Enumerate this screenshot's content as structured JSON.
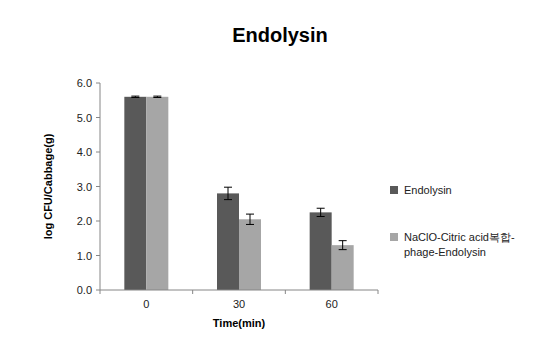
{
  "chart_data": {
    "type": "bar",
    "title": "Endolysin",
    "x_label": "Time(min)",
    "y_label": "log CFU/Cabbage(g)",
    "categories": [
      "0",
      "30",
      "60"
    ],
    "series": [
      {
        "name": "Endolysin",
        "color": "#595959",
        "values": [
          5.6,
          2.8,
          2.25
        ],
        "errors": [
          0.02,
          0.18,
          0.12
        ]
      },
      {
        "name": "NaClO-Citric acid복합-phage-Endolysin",
        "color": "#a6a6a6",
        "values": [
          5.6,
          2.05,
          1.3
        ],
        "errors": [
          0.02,
          0.15,
          0.13
        ]
      }
    ],
    "ylim": [
      0,
      6
    ],
    "yticks": [
      {
        "value": 0,
        "label": "0.0"
      },
      {
        "value": 1,
        "label": "1.0"
      },
      {
        "value": 2,
        "label": "2.0"
      },
      {
        "value": 3,
        "label": "3.0"
      },
      {
        "value": 4,
        "label": "4.0"
      },
      {
        "value": 5,
        "label": "5.0"
      },
      {
        "value": 6,
        "label": "6.0"
      }
    ],
    "grid": false,
    "legend": "right"
  }
}
